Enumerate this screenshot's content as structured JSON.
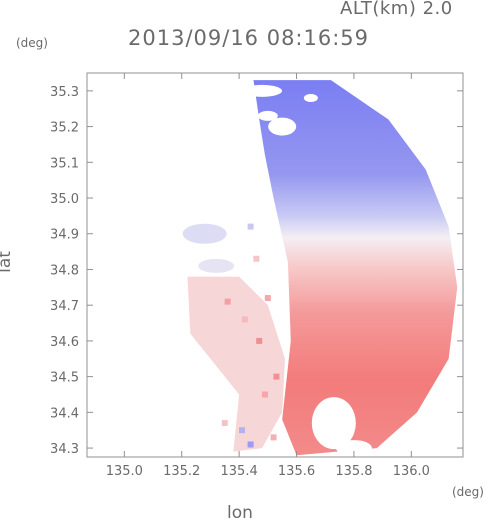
{
  "header": {
    "altitude": "ALT(km) 2.0",
    "timestamp": "2013/09/16 08:16:59"
  },
  "chart_data": {
    "type": "heatmap",
    "title": "2013/09/16 08:16:59",
    "subtitle": "ALT(km) 2.0",
    "xlabel": "lon",
    "ylabel": "lat",
    "x_unit": "(deg)",
    "y_unit": "(deg)",
    "xlim": [
      134.87,
      136.18
    ],
    "ylim": [
      34.275,
      35.35
    ],
    "xticks": [
      135.0,
      135.2,
      135.4,
      135.6,
      135.8,
      136.0
    ],
    "xtick_labels": [
      "135.0",
      "135.2",
      "135.4",
      "135.6",
      "135.8",
      "136.0"
    ],
    "yticks": [
      34.3,
      34.4,
      34.5,
      34.6,
      34.7,
      34.8,
      34.9,
      35.0,
      35.1,
      35.2,
      35.3
    ],
    "ytick_labels": [
      "34.3",
      "34.4",
      "34.5",
      "34.6",
      "34.7",
      "34.8",
      "34.9",
      "35.0",
      "35.1",
      "35.2",
      "35.3"
    ],
    "grid": false,
    "colors": {
      "approaching": "#7d7ff0",
      "receding": "#f47a7a",
      "near_zero": "#f7f0f4",
      "axis": "#909090"
    },
    "regions": [
      {
        "kind": "negative",
        "lon_range": [
          135.45,
          136.05
        ],
        "lat_range": [
          34.92,
          35.33
        ]
      },
      {
        "kind": "positive",
        "lon_range": [
          135.55,
          136.17
        ],
        "lat_range": [
          34.3,
          34.92
        ]
      },
      {
        "kind": "positive-weak",
        "lon_range": [
          135.2,
          135.5
        ],
        "lat_range": [
          34.3,
          34.75
        ]
      }
    ]
  }
}
